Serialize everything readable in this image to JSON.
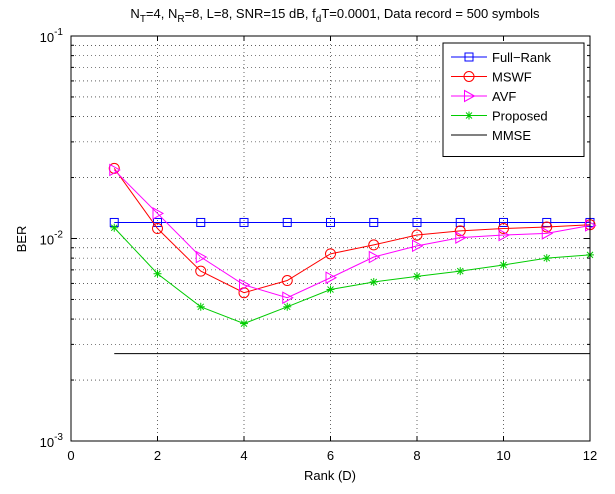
{
  "chart_data": {
    "type": "line",
    "title": {
      "parts": [
        {
          "t": "N",
          "s": "base"
        },
        {
          "t": "T",
          "s": "sub"
        },
        {
          "t": "=4, N",
          "s": "base"
        },
        {
          "t": "R",
          "s": "sub"
        },
        {
          "t": "=8, L=8, SNR=15 dB, f",
          "s": "base"
        },
        {
          "t": "d",
          "s": "sub"
        },
        {
          "t": "T=0.0001, Data record = 500 symbols",
          "s": "base"
        }
      ]
    },
    "xlabel": "Rank (D)",
    "ylabel": "BER",
    "xlim": [
      0,
      12
    ],
    "ylim": [
      0.001,
      0.1
    ],
    "yscale": "log",
    "grid": true,
    "legend_position": "top-right",
    "x_ticks": [
      "0",
      "2",
      "4",
      "6",
      "8",
      "10",
      "12"
    ],
    "y_ticks": [
      {
        "base": "10",
        "exp": "-1"
      },
      {
        "base": "10",
        "exp": "-2"
      },
      {
        "base": "10",
        "exp": "-3"
      }
    ],
    "series": [
      {
        "name": "Full−Rank",
        "color": "#0000ff",
        "marker": "square",
        "x": [
          1,
          2,
          3,
          4,
          5,
          6,
          7,
          8,
          9,
          10,
          11,
          12
        ],
        "y": [
          0.012,
          0.012,
          0.012,
          0.012,
          0.012,
          0.012,
          0.012,
          0.012,
          0.012,
          0.012,
          0.012,
          0.012
        ]
      },
      {
        "name": "MSWF",
        "color": "#ff0000",
        "marker": "circle",
        "x": [
          1,
          2,
          3,
          4,
          5,
          6,
          7,
          8,
          9,
          10,
          11,
          12
        ],
        "y": [
          0.0222,
          0.0112,
          0.0069,
          0.0054,
          0.0062,
          0.0084,
          0.0093,
          0.0104,
          0.0109,
          0.0112,
          0.0114,
          0.0117
        ]
      },
      {
        "name": "AVF",
        "color": "#ff00ff",
        "marker": "triangle-right",
        "x": [
          1,
          2,
          3,
          4,
          5,
          6,
          7,
          8,
          9,
          10,
          11,
          12
        ],
        "y": [
          0.0218,
          0.0133,
          0.0081,
          0.0059,
          0.0051,
          0.0064,
          0.0081,
          0.0092,
          0.0101,
          0.0104,
          0.0106,
          0.0116
        ]
      },
      {
        "name": "Proposed",
        "color": "#00cc00",
        "marker": "asterisk",
        "x": [
          1,
          2,
          3,
          4,
          5,
          6,
          7,
          8,
          9,
          10,
          11,
          12
        ],
        "y": [
          0.0113,
          0.0067,
          0.0046,
          0.0038,
          0.0046,
          0.0056,
          0.0061,
          0.0065,
          0.0069,
          0.0074,
          0.008,
          0.0083
        ]
      },
      {
        "name": "MMSE",
        "color": "#000000",
        "marker": "none",
        "x": [
          1,
          12
        ],
        "y": [
          0.0027,
          0.0027
        ]
      }
    ]
  }
}
